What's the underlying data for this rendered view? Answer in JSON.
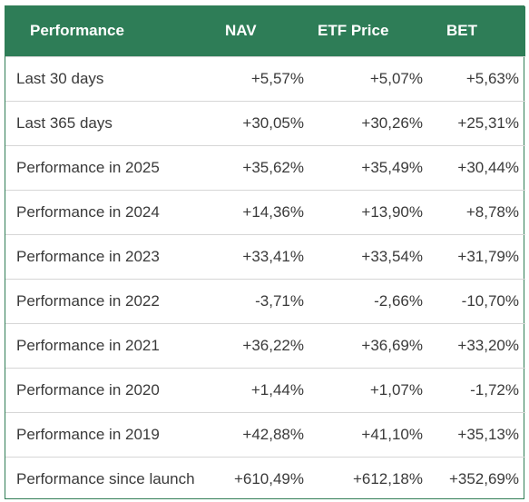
{
  "table": {
    "headers": [
      "Performance",
      "NAV",
      "ETF Price",
      "BET"
    ],
    "rows": [
      {
        "label": "Last 30 days",
        "nav": "+5,57%",
        "etf": "+5,07%",
        "bet": "+5,63%"
      },
      {
        "label": "Last 365 days",
        "nav": "+30,05%",
        "etf": "+30,26%",
        "bet": "+25,31%"
      },
      {
        "label": "Performance in 2025",
        "nav": "+35,62%",
        "etf": "+35,49%",
        "bet": "+30,44%"
      },
      {
        "label": "Performance in 2024",
        "nav": "+14,36%",
        "etf": "+13,90%",
        "bet": "+8,78%"
      },
      {
        "label": "Performance in 2023",
        "nav": "+33,41%",
        "etf": "+33,54%",
        "bet": "+31,79%"
      },
      {
        "label": "Performance in 2022",
        "nav": "-3,71%",
        "etf": "-2,66%",
        "bet": "-10,70%"
      },
      {
        "label": "Performance in 2021",
        "nav": "+36,22%",
        "etf": "+36,69%",
        "bet": "+33,20%"
      },
      {
        "label": "Performance in 2020",
        "nav": "+1,44%",
        "etf": "+1,07%",
        "bet": "-1,72%"
      },
      {
        "label": "Performance in 2019",
        "nav": "+42,88%",
        "etf": "+41,10%",
        "bet": "+35,13%"
      },
      {
        "label": "Performance since launch",
        "nav": "+610,49%",
        "etf": "+612,18%",
        "bet": "+352,69%"
      }
    ]
  },
  "colors": {
    "header_background": "#2e7d57",
    "header_text": "#ffffff",
    "row_divider": "#d6d6d6",
    "body_text": "#3a3a3a"
  }
}
